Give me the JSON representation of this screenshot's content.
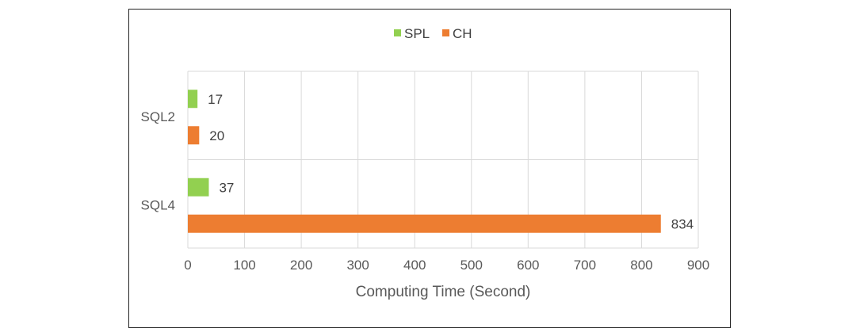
{
  "chart_data": {
    "type": "bar",
    "orientation": "horizontal",
    "categories": [
      "SQL2",
      "SQL4"
    ],
    "series": [
      {
        "name": "SPL",
        "color": "#92D050",
        "values": [
          17,
          37
        ]
      },
      {
        "name": "CH",
        "color": "#ED7D31",
        "values": [
          20,
          834
        ]
      }
    ],
    "xlabel": "Computing Time (Second)",
    "ylabel": "",
    "xlim": [
      0,
      900
    ],
    "xticks": [
      "0",
      "100",
      "200",
      "300",
      "400",
      "500",
      "600",
      "700",
      "800",
      "900"
    ],
    "data_labels": true,
    "grid": true,
    "legend_position": "top"
  }
}
